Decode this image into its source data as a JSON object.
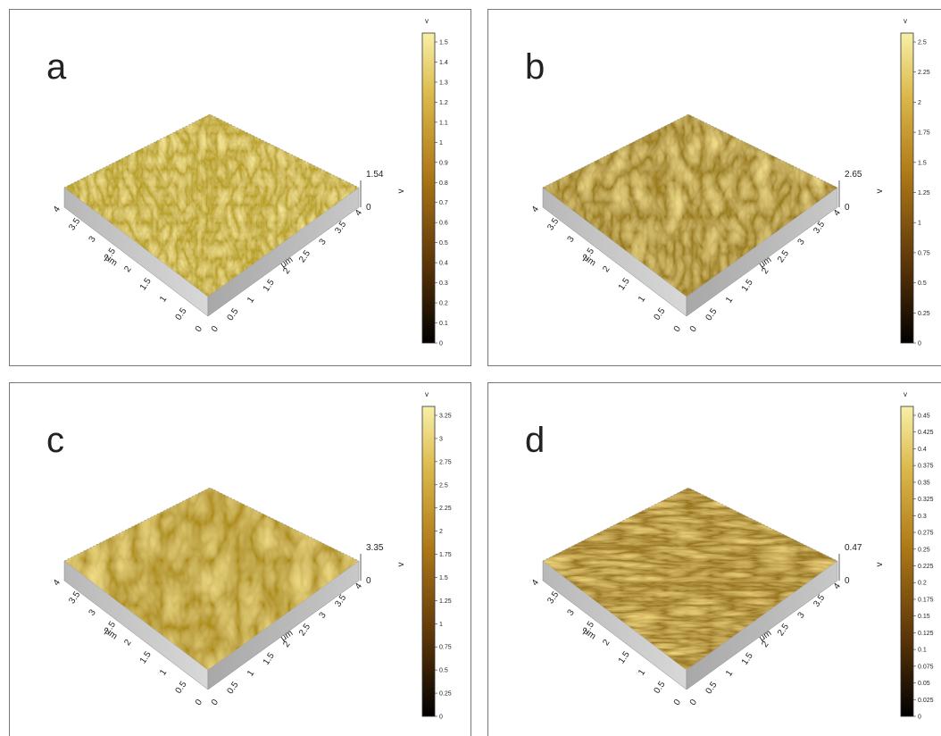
{
  "panels": [
    {
      "label": "a",
      "z_max": "1.54",
      "z_min": "0",
      "z_unit": "v",
      "colorbar_unit": "v",
      "colorbar_ticks": [
        "0",
        "0.1",
        "0.2",
        "0.3",
        "0.4",
        "0.5",
        "0.6",
        "0.7",
        "0.8",
        "0.9",
        "1",
        "1.1",
        "1.2",
        "1.3",
        "1.4",
        "1.5"
      ],
      "x_axis_label": "μm",
      "y_axis_label": "μm",
      "x_ticks": [
        "0",
        "0.5",
        "1",
        "1.5",
        "2",
        "2.5",
        "3",
        "3.5",
        "4"
      ],
      "y_ticks": [
        "0",
        "0.5",
        "1",
        "1.5",
        "2",
        "2.5",
        "3",
        "3.5",
        "4"
      ]
    },
    {
      "label": "b",
      "z_max": "2.65",
      "z_min": "0",
      "z_unit": "v",
      "colorbar_unit": "v",
      "colorbar_ticks": [
        "0",
        "0.25",
        "0.5",
        "0.75",
        "1",
        "1.25",
        "1.5",
        "1.75",
        "2",
        "2.25",
        "2.5"
      ],
      "x_axis_label": "μm",
      "y_axis_label": "μm",
      "x_ticks": [
        "0",
        "0.5",
        "1",
        "1.5",
        "2",
        "2.5",
        "3",
        "3.5",
        "4"
      ],
      "y_ticks": [
        "0",
        "0.5",
        "1",
        "1.5",
        "2",
        "2.5",
        "3",
        "3.5",
        "4"
      ]
    },
    {
      "label": "c",
      "z_max": "3.35",
      "z_min": "0",
      "z_unit": "v",
      "colorbar_unit": "v",
      "colorbar_ticks": [
        "0",
        "0.25",
        "0.5",
        "0.75",
        "1",
        "1.25",
        "1.5",
        "1.75",
        "2",
        "2.25",
        "2.5",
        "2.75",
        "3",
        "3.25"
      ],
      "x_axis_label": "μm",
      "y_axis_label": "μm",
      "x_ticks": [
        "0",
        "0.5",
        "1",
        "1.5",
        "2",
        "2.5",
        "3",
        "3.5",
        "4"
      ],
      "y_ticks": [
        "0",
        "0.5",
        "1",
        "1.5",
        "2",
        "2.5",
        "3",
        "3.5",
        "4"
      ]
    },
    {
      "label": "d",
      "z_max": "0.47",
      "z_min": "0",
      "z_unit": "v",
      "colorbar_unit": "v",
      "colorbar_ticks": [
        "0",
        "0.025",
        "0.05",
        "0.075",
        "0.1",
        "0.125",
        "0.15",
        "0.175",
        "0.2",
        "0.225",
        "0.25",
        "0.275",
        "0.3",
        "0.325",
        "0.35",
        "0.375",
        "0.4",
        "0.425",
        "0.45"
      ],
      "x_axis_label": "μm",
      "y_axis_label": "μm",
      "x_ticks": [
        "0",
        "0.5",
        "1",
        "1.5",
        "2",
        "2.5",
        "3",
        "3.5",
        "4"
      ],
      "y_ticks": [
        "0",
        "0.5",
        "1",
        "1.5",
        "2",
        "2.5",
        "3",
        "3.5",
        "4"
      ]
    }
  ]
}
